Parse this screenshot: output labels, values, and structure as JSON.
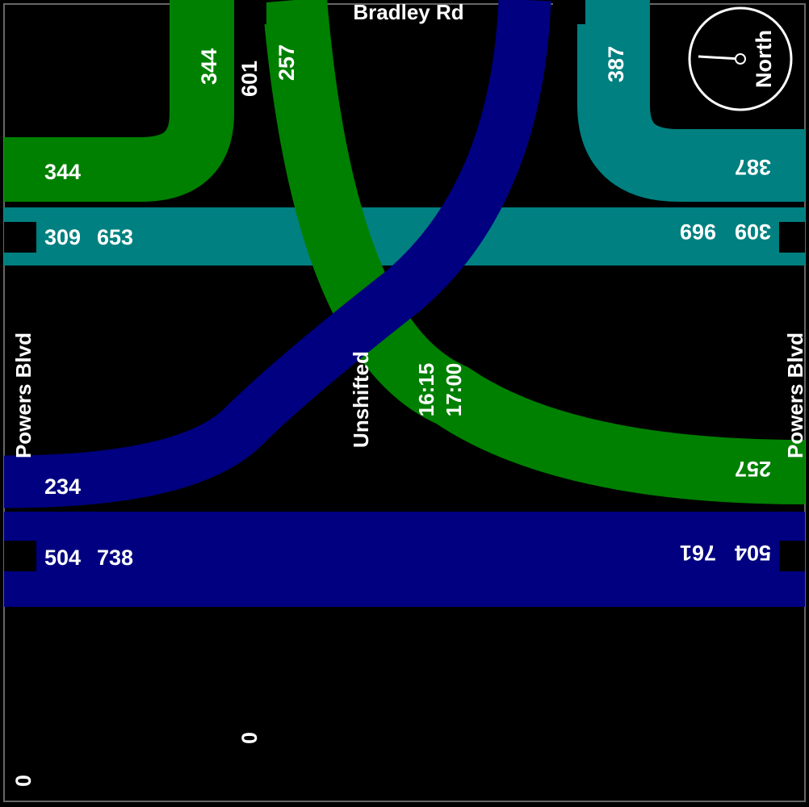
{
  "colors": {
    "background": "#000000",
    "green": "#008000",
    "teal": "#008080",
    "navy": "#000080",
    "text": "#ffffff"
  },
  "roads": {
    "north": "Bradley Rd",
    "west": "Powers Blvd",
    "east": "Powers Blvd"
  },
  "compass": {
    "label": "North",
    "icon": "compass-icon"
  },
  "center": {
    "shift": "Unshifted",
    "time_start": "16:15",
    "time_end": "17:00"
  },
  "flows": {
    "west_top_green": "344",
    "west_thru_teal": [
      "309",
      "653"
    ],
    "west_left_navy": "234",
    "west_bottom_navy": [
      "504",
      "738"
    ],
    "east_top_teal": "387",
    "east_thru_teal": [
      "309",
      "969"
    ],
    "east_green": "257",
    "east_bottom_navy": [
      "504",
      "761"
    ],
    "north_green_right": "344",
    "north_total": "601",
    "north_green_left": "257",
    "north_teal": "387",
    "south_total": "0",
    "corner_bottom_left": "0"
  }
}
